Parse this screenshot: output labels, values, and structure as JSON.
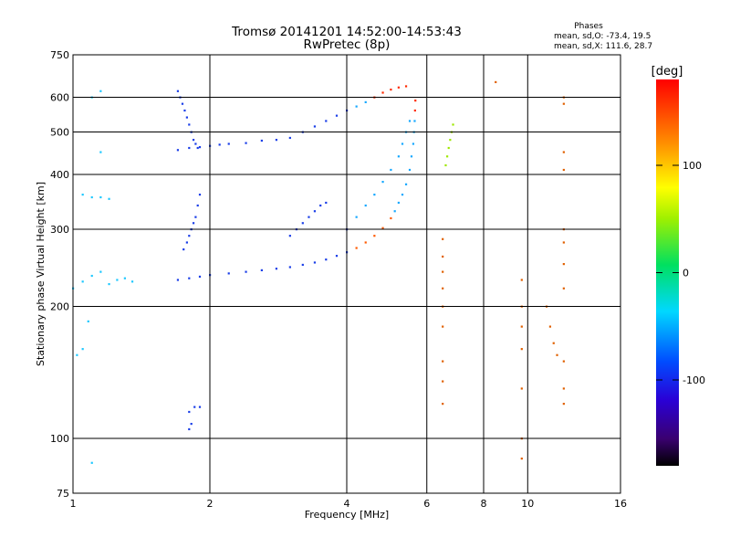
{
  "chart_data": {
    "type": "scatter",
    "title": "Tromsø 20141201 14:52:00-14:53:43",
    "subtitle": "RwPretec (8p)",
    "xlabel": "Frequency [MHz]",
    "ylabel": "Stationary phase Virtual Height [km]",
    "x_scale": "log",
    "y_scale": "log",
    "xlim": [
      1,
      16
    ],
    "ylim": [
      75,
      750
    ],
    "x_ticks": [
      1,
      2,
      4,
      6,
      8,
      10,
      16
    ],
    "y_ticks": [
      75,
      100,
      200,
      300,
      400,
      500,
      600,
      750
    ],
    "grid": true,
    "stats": {
      "heading": "Phases",
      "line_o": "mean, sd,O: -73.4, 19.5",
      "line_x": "mean, sd,X: 111.6, 28.7"
    },
    "colorbar": {
      "label": "[deg]",
      "range": [
        -180,
        180
      ],
      "ticks": [
        100,
        0,
        -100
      ],
      "colormap": "rainbow"
    },
    "series": [
      {
        "values": [
          [
            1.7,
            230
          ],
          [
            1.8,
            232
          ],
          [
            1.9,
            234
          ],
          [
            2.0,
            236
          ],
          [
            2.2,
            238
          ],
          [
            2.4,
            240
          ],
          [
            2.6,
            242
          ],
          [
            2.8,
            244
          ],
          [
            3.0,
            246
          ],
          [
            3.2,
            249
          ],
          [
            3.4,
            252
          ],
          [
            3.6,
            256
          ],
          [
            3.8,
            261
          ],
          [
            4.0,
            266
          ],
          [
            4.2,
            272
          ],
          [
            4.4,
            280
          ],
          [
            4.6,
            290
          ],
          [
            4.8,
            302
          ],
          [
            5.0,
            318
          ],
          [
            5.1,
            330
          ],
          [
            5.2,
            345
          ],
          [
            5.3,
            360
          ],
          [
            5.4,
            380
          ],
          [
            5.5,
            410
          ],
          [
            5.55,
            440
          ],
          [
            5.6,
            470
          ],
          [
            5.62,
            500
          ],
          [
            5.64,
            530
          ],
          [
            5.65,
            560
          ],
          [
            5.66,
            590
          ],
          [
            1.7,
            455
          ],
          [
            1.8,
            460
          ],
          [
            1.9,
            462
          ],
          [
            2.0,
            465
          ],
          [
            2.1,
            468
          ],
          [
            2.2,
            470
          ],
          [
            2.4,
            472
          ],
          [
            2.6,
            478
          ],
          [
            2.8,
            480
          ],
          [
            3.0,
            485
          ],
          [
            3.2,
            500
          ],
          [
            3.4,
            515
          ],
          [
            3.6,
            530
          ],
          [
            3.8,
            545
          ],
          [
            4.0,
            560
          ],
          [
            4.2,
            572
          ],
          [
            4.4,
            585
          ],
          [
            4.6,
            600
          ],
          [
            4.8,
            615
          ],
          [
            5.0,
            625
          ],
          [
            5.2,
            632
          ],
          [
            5.4,
            636
          ],
          [
            1.7,
            620
          ],
          [
            1.72,
            600
          ],
          [
            1.74,
            580
          ],
          [
            1.76,
            560
          ],
          [
            1.78,
            540
          ],
          [
            1.8,
            520
          ],
          [
            1.82,
            500
          ],
          [
            1.84,
            480
          ],
          [
            1.86,
            470
          ],
          [
            1.88,
            460
          ],
          [
            1.75,
            270
          ],
          [
            1.78,
            280
          ],
          [
            1.8,
            290
          ],
          [
            1.82,
            300
          ],
          [
            1.84,
            310
          ],
          [
            1.86,
            320
          ],
          [
            1.88,
            340
          ],
          [
            1.9,
            360
          ],
          [
            1.0,
            220
          ],
          [
            1.05,
            228
          ],
          [
            1.1,
            235
          ],
          [
            1.15,
            240
          ],
          [
            1.2,
            225
          ],
          [
            1.25,
            230
          ],
          [
            1.3,
            232
          ],
          [
            1.35,
            228
          ],
          [
            4.0,
            300
          ],
          [
            4.2,
            320
          ],
          [
            4.4,
            340
          ],
          [
            4.6,
            360
          ],
          [
            4.8,
            385
          ],
          [
            5.0,
            410
          ],
          [
            5.2,
            440
          ],
          [
            5.3,
            470
          ],
          [
            5.4,
            500
          ],
          [
            5.5,
            530
          ],
          [
            3.0,
            290
          ],
          [
            3.1,
            300
          ],
          [
            3.2,
            310
          ],
          [
            3.3,
            320
          ],
          [
            3.4,
            330
          ],
          [
            3.5,
            340
          ],
          [
            3.6,
            345
          ],
          [
            6.6,
            420
          ],
          [
            6.65,
            440
          ],
          [
            6.7,
            460
          ],
          [
            6.75,
            480
          ],
          [
            6.8,
            500
          ],
          [
            6.85,
            520
          ],
          [
            6.5,
            285
          ],
          [
            6.5,
            260
          ],
          [
            6.5,
            240
          ],
          [
            6.5,
            220
          ],
          [
            6.5,
            200
          ],
          [
            6.5,
            180
          ],
          [
            6.5,
            150
          ],
          [
            6.5,
            135
          ],
          [
            6.5,
            120
          ],
          [
            9.7,
            230
          ],
          [
            9.7,
            200
          ],
          [
            9.7,
            180
          ],
          [
            9.7,
            160
          ],
          [
            9.7,
            130
          ],
          [
            9.7,
            100
          ],
          [
            9.7,
            90
          ],
          [
            12.0,
            600
          ],
          [
            12.0,
            580
          ],
          [
            12.0,
            450
          ],
          [
            12.0,
            410
          ],
          [
            12.0,
            300
          ],
          [
            12.0,
            280
          ],
          [
            12.0,
            250
          ],
          [
            12.0,
            220
          ],
          [
            12.0,
            150
          ],
          [
            12.0,
            130
          ],
          [
            12.0,
            120
          ],
          [
            11.0,
            200
          ],
          [
            11.2,
            180
          ],
          [
            11.4,
            165
          ],
          [
            11.6,
            155
          ],
          [
            1.05,
            360
          ],
          [
            1.1,
            355
          ],
          [
            1.15,
            355
          ],
          [
            1.2,
            352
          ],
          [
            1.02,
            155
          ],
          [
            1.05,
            160
          ],
          [
            1.08,
            185
          ],
          [
            1.8,
            115
          ],
          [
            1.85,
            118
          ],
          [
            1.9,
            118
          ],
          [
            1.8,
            105
          ],
          [
            1.82,
            108
          ],
          [
            1.1,
            88
          ],
          [
            8.5,
            650
          ],
          [
            1.15,
            450
          ],
          [
            1.1,
            600
          ],
          [
            1.15,
            620
          ]
        ]
      }
    ]
  }
}
